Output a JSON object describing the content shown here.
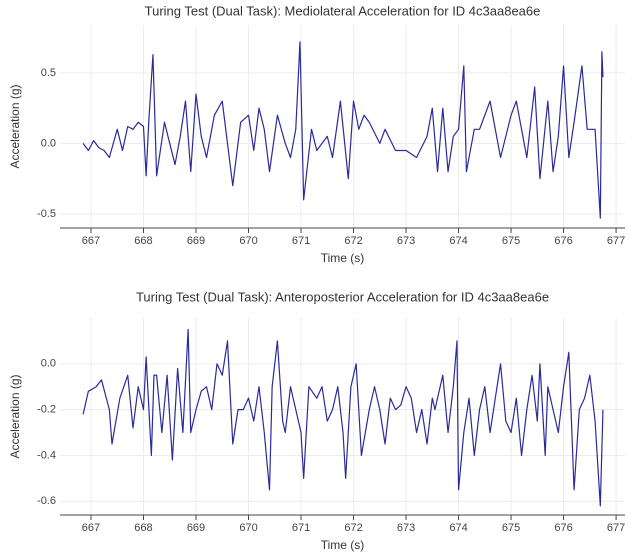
{
  "chart_data": [
    {
      "type": "line",
      "title": "Turing Test (Dual Task): Mediolateral Acceleration for ID 4c3aa8ea6e",
      "x_label": "Time (s)",
      "y_label": "Acceleration (g)",
      "color": "#2a2a9c",
      "x": [
        666.85,
        666.95,
        667.05,
        667.15,
        667.25,
        667.35,
        667.5,
        667.6,
        667.7,
        667.8,
        667.9,
        668.0,
        668.05,
        668.1,
        668.18,
        668.25,
        668.4,
        668.5,
        668.6,
        668.7,
        668.8,
        668.9,
        669.0,
        669.1,
        669.2,
        669.35,
        669.5,
        669.6,
        669.7,
        669.85,
        670.0,
        670.1,
        670.2,
        670.3,
        670.4,
        670.55,
        670.7,
        670.8,
        670.9,
        670.98,
        671.05,
        671.2,
        671.3,
        671.4,
        671.5,
        671.6,
        671.75,
        671.9,
        672.0,
        672.1,
        672.2,
        672.3,
        672.5,
        672.6,
        672.8,
        673.0,
        673.2,
        673.4,
        673.5,
        673.6,
        673.7,
        673.8,
        673.9,
        674.0,
        674.1,
        674.15,
        674.3,
        674.4,
        674.6,
        674.8,
        675.0,
        675.1,
        675.3,
        675.45,
        675.55,
        675.7,
        675.8,
        675.9,
        676.0,
        676.1,
        676.2,
        676.35,
        676.45,
        676.6,
        676.7,
        676.73,
        676.75
      ],
      "values": [
        0.0,
        -0.05,
        0.02,
        -0.03,
        -0.05,
        -0.1,
        0.1,
        -0.05,
        0.12,
        0.1,
        0.15,
        0.12,
        -0.23,
        0.15,
        0.63,
        -0.23,
        0.15,
        0.0,
        -0.15,
        0.05,
        0.3,
        -0.2,
        0.35,
        0.05,
        -0.1,
        0.2,
        0.3,
        0.0,
        -0.3,
        0.15,
        0.2,
        -0.05,
        0.25,
        0.1,
        -0.2,
        0.2,
        0.0,
        -0.1,
        0.1,
        0.72,
        -0.4,
        0.1,
        -0.05,
        0.0,
        0.05,
        -0.1,
        0.3,
        -0.25,
        0.3,
        0.1,
        0.2,
        0.15,
        0.0,
        0.1,
        -0.05,
        -0.05,
        -0.1,
        0.05,
        0.25,
        -0.2,
        0.25,
        -0.2,
        0.05,
        0.1,
        0.55,
        -0.2,
        0.1,
        0.1,
        0.3,
        -0.1,
        0.2,
        0.3,
        -0.1,
        0.4,
        -0.25,
        0.3,
        -0.2,
        0.05,
        0.55,
        -0.1,
        0.15,
        0.55,
        0.1,
        0.1,
        -0.53,
        0.65,
        0.47
      ],
      "xlim": [
        666.41,
        677.17
      ],
      "xticks": [
        667,
        668,
        669,
        670,
        671,
        672,
        673,
        674,
        675,
        676,
        677
      ],
      "ylim": [
        -0.6,
        0.84
      ],
      "yticks": [
        0.5,
        {
          "value": 0,
          "label": "0.0"
        },
        -0.5
      ],
      "grid": true
    },
    {
      "type": "line",
      "title": "Turing Test (Dual Task): Anteroposterior Acceleration for ID 4c3aa8ea6e",
      "x_label": "Time (s)",
      "y_label": "Acceleration (g)",
      "color": "#2a2a9c",
      "x": [
        666.85,
        666.95,
        667.1,
        667.2,
        667.35,
        667.4,
        667.55,
        667.7,
        667.8,
        667.9,
        668.0,
        668.05,
        668.15,
        668.2,
        668.25,
        668.35,
        668.45,
        668.55,
        668.65,
        668.75,
        668.85,
        668.9,
        669.0,
        669.1,
        669.2,
        669.3,
        669.4,
        669.5,
        669.6,
        669.7,
        669.8,
        669.9,
        670.0,
        670.1,
        670.2,
        670.3,
        670.4,
        670.45,
        670.55,
        670.65,
        670.7,
        670.8,
        670.9,
        671.0,
        671.05,
        671.15,
        671.3,
        671.4,
        671.5,
        671.6,
        671.7,
        671.8,
        671.85,
        671.95,
        672.05,
        672.15,
        672.3,
        672.4,
        672.5,
        672.6,
        672.7,
        672.8,
        672.9,
        673.0,
        673.1,
        673.2,
        673.3,
        673.4,
        673.5,
        673.55,
        673.7,
        673.8,
        673.9,
        673.97,
        674.0,
        674.1,
        674.2,
        674.3,
        674.4,
        674.5,
        674.6,
        674.7,
        674.8,
        674.9,
        675.0,
        675.1,
        675.2,
        675.3,
        675.4,
        675.5,
        675.55,
        675.65,
        675.7,
        675.8,
        675.9,
        676.0,
        676.1,
        676.2,
        676.3,
        676.4,
        676.5,
        676.6,
        676.7,
        676.75
      ],
      "values": [
        -0.22,
        -0.12,
        -0.1,
        -0.07,
        -0.2,
        -0.35,
        -0.15,
        -0.05,
        -0.28,
        -0.1,
        -0.2,
        0.03,
        -0.4,
        -0.05,
        -0.05,
        -0.3,
        -0.05,
        -0.42,
        -0.02,
        -0.3,
        0.15,
        -0.3,
        -0.2,
        -0.12,
        -0.1,
        -0.2,
        0.0,
        -0.05,
        0.1,
        -0.35,
        -0.2,
        -0.2,
        -0.15,
        -0.25,
        -0.1,
        -0.3,
        -0.55,
        -0.1,
        0.1,
        -0.25,
        -0.3,
        -0.1,
        -0.2,
        -0.3,
        -0.5,
        -0.1,
        -0.15,
        -0.1,
        -0.25,
        -0.2,
        -0.1,
        -0.3,
        -0.5,
        -0.1,
        0.0,
        -0.4,
        -0.2,
        -0.1,
        -0.2,
        -0.35,
        -0.15,
        -0.2,
        -0.18,
        -0.1,
        -0.15,
        -0.3,
        -0.2,
        -0.35,
        -0.15,
        -0.2,
        -0.05,
        -0.3,
        -0.1,
        0.1,
        -0.55,
        -0.3,
        -0.15,
        -0.4,
        -0.2,
        -0.1,
        -0.3,
        -0.15,
        0.0,
        -0.25,
        -0.3,
        -0.15,
        -0.4,
        -0.2,
        -0.05,
        -0.25,
        0.0,
        -0.4,
        -0.1,
        -0.2,
        -0.3,
        -0.1,
        0.05,
        -0.55,
        -0.2,
        -0.15,
        -0.05,
        -0.25,
        -0.62,
        -0.2
      ],
      "xlim": [
        666.41,
        677.17
      ],
      "xticks": [
        667,
        668,
        669,
        670,
        671,
        672,
        673,
        674,
        675,
        676,
        677
      ],
      "ylim": [
        -0.66,
        0.2
      ],
      "yticks": [
        {
          "value": 0,
          "label": "0.0"
        },
        -0.2,
        -0.4,
        -0.6
      ],
      "grid": true
    }
  ]
}
